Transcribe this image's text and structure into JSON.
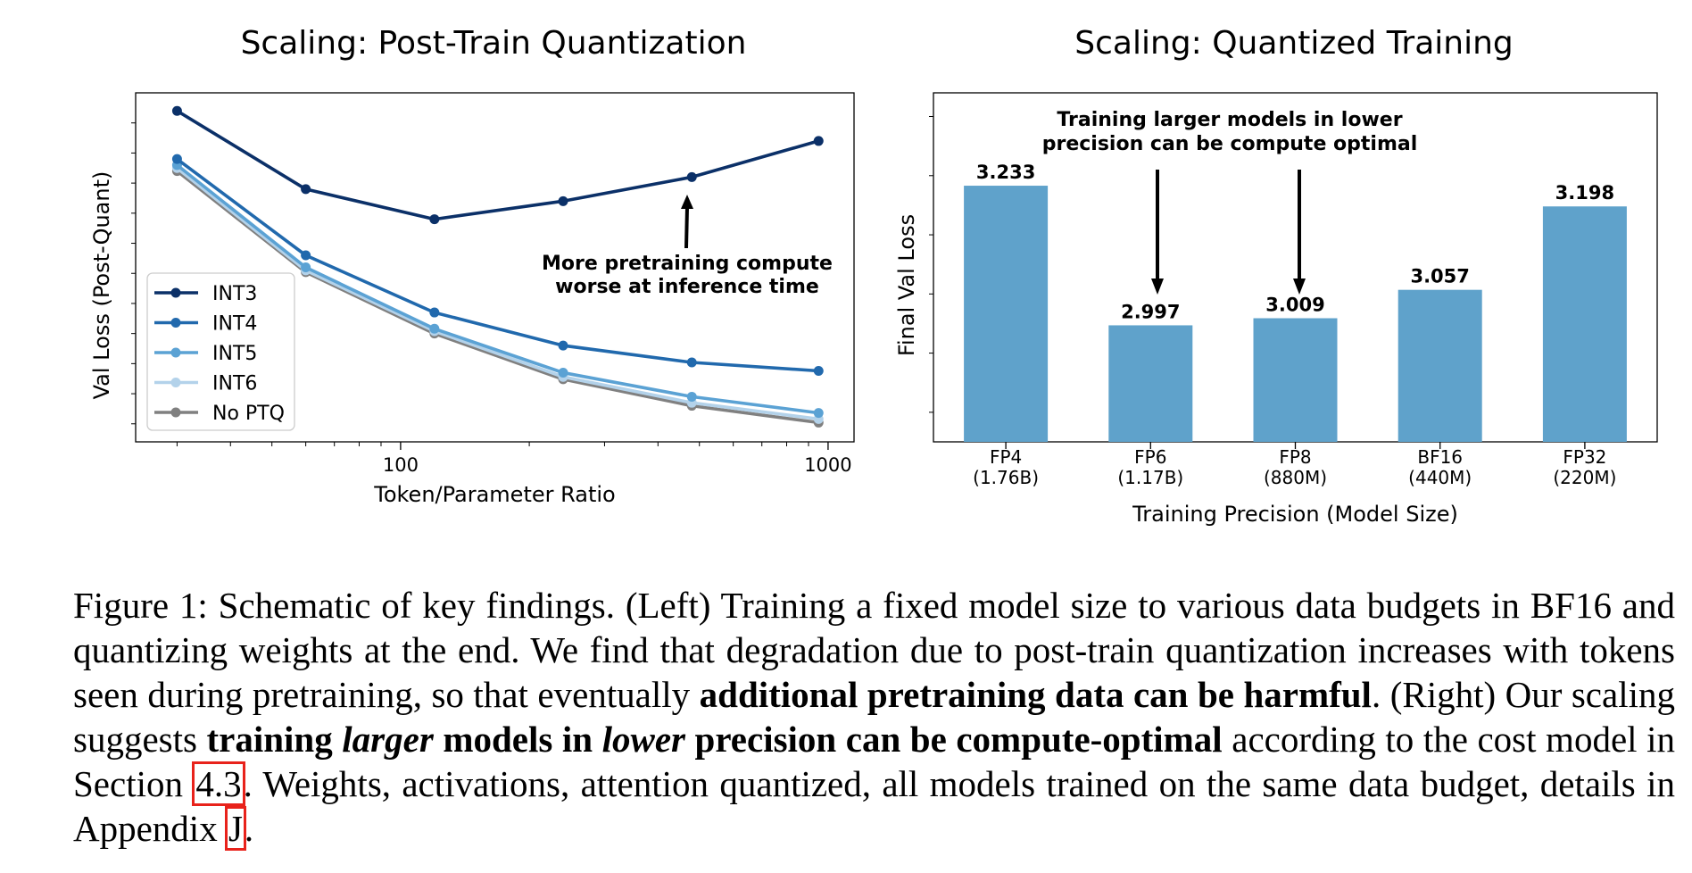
{
  "left_chart_title": "Scaling: Post-Train Quantization",
  "right_chart_title": "Scaling: Quantized Training",
  "chart_data": [
    {
      "type": "line",
      "title": "Scaling: Post-Train Quantization",
      "xlabel": "Token/Parameter Ratio",
      "ylabel": "Val Loss (Post-Quant)",
      "x_scale": "log",
      "x_ticks": [
        "100",
        "1000"
      ],
      "x": [
        30,
        60,
        120,
        240,
        480,
        950
      ],
      "legend_position": "lower-left",
      "series": [
        {
          "name": "INT3",
          "color": "#0b3068",
          "values": [
            3.62,
            3.49,
            3.44,
            3.47,
            3.51,
            3.57
          ]
        },
        {
          "name": "INT4",
          "color": "#2169ad",
          "values": [
            3.54,
            3.38,
            3.285,
            3.23,
            3.202,
            3.188
          ]
        },
        {
          "name": "INT5",
          "color": "#5ba2d4",
          "values": [
            3.53,
            3.36,
            3.258,
            3.185,
            3.145,
            3.118
          ]
        },
        {
          "name": "INT6",
          "color": "#b3d2ea",
          "values": [
            3.525,
            3.355,
            3.254,
            3.178,
            3.135,
            3.108
          ]
        },
        {
          "name": "No PTQ",
          "color": "#808080",
          "values": [
            3.52,
            3.352,
            3.25,
            3.174,
            3.13,
            3.102
          ]
        }
      ],
      "annotation": {
        "lines": [
          "More pretraining compute",
          "worse at inference time"
        ]
      }
    },
    {
      "type": "bar",
      "title": "Scaling: Quantized Training",
      "xlabel": "Training Precision (Model Size)",
      "ylabel": "Final Val Loss",
      "bar_color": "#5fa2cb",
      "categories": [
        {
          "name": "FP4",
          "size": "(1.76B)"
        },
        {
          "name": "FP6",
          "size": "(1.17B)"
        },
        {
          "name": "FP8",
          "size": "(880M)"
        },
        {
          "name": "BF16",
          "size": "(440M)"
        },
        {
          "name": "FP32",
          "size": "(220M)"
        }
      ],
      "values": [
        3.233,
        2.997,
        3.009,
        3.057,
        3.198
      ],
      "value_labels": [
        "3.233",
        "2.997",
        "3.009",
        "3.057",
        "3.198"
      ],
      "ylim": [
        2.8,
        3.39
      ],
      "annotation": {
        "lines": [
          "Training larger models in lower",
          "precision can be compute optimal"
        ]
      }
    }
  ],
  "caption": {
    "p1": "Figure 1: Schematic of key findings. (Left) Training a fixed model size to various data budgets in BF16 and quantizing weights at the end. We find that degradation due to post-train quantization increases with tokens seen during pretraining, so that eventually ",
    "b1": "additional pretraining data can be harmful",
    "p2": ". (Right) Our scaling suggests ",
    "b2a": "training ",
    "b2i1": "larger",
    "b2b": " models in ",
    "b2i2": "lower",
    "b2c": " precision can be compute-optimal",
    "p3": " according to the cost model in Section ",
    "ref1": "4.3",
    "p4": ". Weights, activations, attention quantized, all models trained on the same data budget, details in Appendix ",
    "ref2": "J",
    "p5": "."
  },
  "colors": {
    "ref_box": "#e8221b"
  }
}
